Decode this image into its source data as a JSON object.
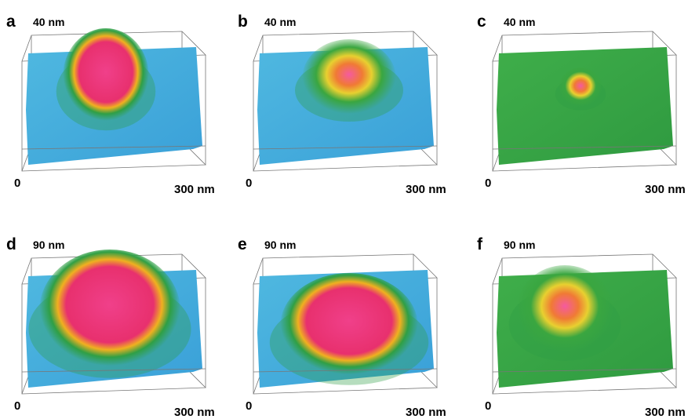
{
  "panels": [
    {
      "label": "a",
      "height": "40 nm",
      "origin": "0",
      "width": "300 nm"
    },
    {
      "label": "b",
      "height": "40 nm",
      "origin": "0",
      "width": "300 nm"
    },
    {
      "label": "c",
      "height": "40 nm",
      "origin": "0",
      "width": "300 nm"
    },
    {
      "label": "d",
      "height": "90 nm",
      "origin": "0",
      "width": "300 nm"
    },
    {
      "label": "e",
      "height": "90 nm",
      "origin": "0",
      "width": "300 nm"
    },
    {
      "label": "f",
      "height": "90 nm",
      "origin": "0",
      "width": "300 nm"
    }
  ]
}
